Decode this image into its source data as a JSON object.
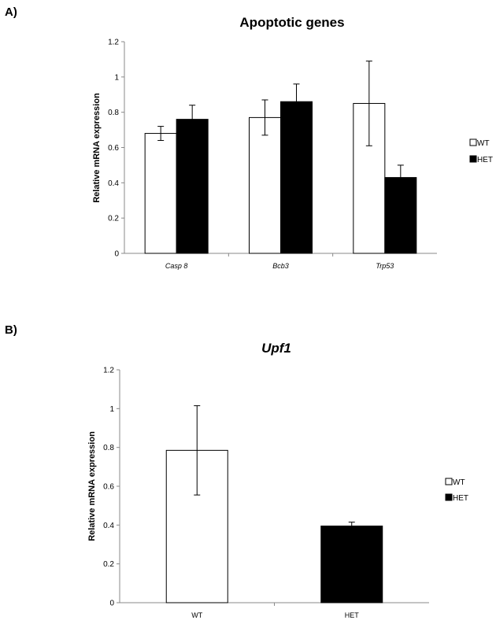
{
  "chart_data": [
    {
      "panel_label": "A)",
      "type": "bar",
      "title": "Apoptotic genes",
      "ylabel": "Relative mRNA expression",
      "ylim": [
        0,
        1.2
      ],
      "yticks": [
        "0",
        "0.2",
        "0.4",
        "0.6",
        "0.8",
        "1",
        "1.2"
      ],
      "categories": [
        "Casp 8",
        "Bcb3",
        "Trp53"
      ],
      "categories_italic": true,
      "series": [
        {
          "name": "WT",
          "color": "#ffffff",
          "values": [
            0.68,
            0.77,
            0.85
          ],
          "errors": [
            0.04,
            0.1,
            0.24
          ]
        },
        {
          "name": "HET",
          "color": "#000000",
          "values": [
            0.76,
            0.86,
            0.43
          ],
          "errors": [
            0.08,
            0.1,
            0.07
          ]
        }
      ],
      "legend": "right"
    },
    {
      "panel_label": "B)",
      "type": "bar",
      "title": "Upf1",
      "title_italic": true,
      "ylabel": "Relative mRNA expression",
      "ylim": [
        0,
        1.2
      ],
      "yticks": [
        "0",
        "0.2",
        "0.4",
        "0.6",
        "0.8",
        "1",
        "1.2"
      ],
      "categories": [
        "WT",
        "HET"
      ],
      "categories_italic": false,
      "series": [
        {
          "name": "WT",
          "color": "#ffffff",
          "values": [
            0.785,
            null
          ],
          "errors": [
            0.23,
            null
          ]
        },
        {
          "name": "HET",
          "color": "#000000",
          "values": [
            null,
            0.395
          ],
          "errors": [
            null,
            0.02
          ]
        }
      ],
      "legend": "right"
    }
  ]
}
